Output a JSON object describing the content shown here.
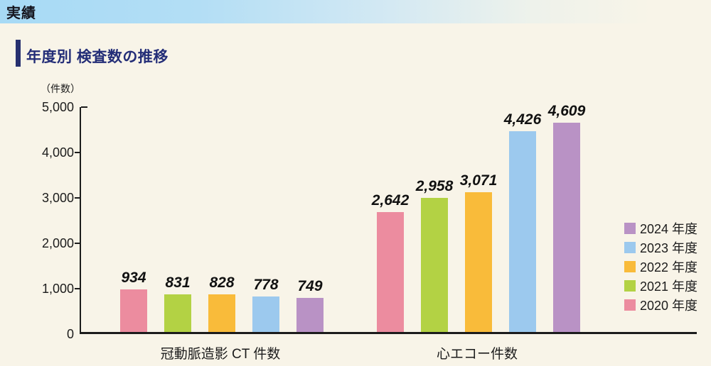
{
  "banner": {
    "label": "実績"
  },
  "section": {
    "title": "年度別 検査数の推移"
  },
  "chart_data": {
    "type": "bar",
    "title": "年度別 検査数の推移",
    "unit_label": "（件数）",
    "ylim": [
      0,
      5000
    ],
    "ytick_interval": 1000,
    "ytick_labels": [
      "0",
      "1,000",
      "2,000",
      "3,000",
      "4,000",
      "5,000"
    ],
    "grid": false,
    "legend_position": "right",
    "legend_order": "newest-first",
    "categories": [
      "冠動脈造影 CT 件数",
      "心エコー件数"
    ],
    "series": [
      {
        "name": "2020 年度",
        "color": "#ec8c9f",
        "values": [
          934,
          2642
        ],
        "value_labels": [
          "934",
          "2,642"
        ]
      },
      {
        "name": "2021 年度",
        "color": "#b3d244",
        "values": [
          831,
          2958
        ],
        "value_labels": [
          "831",
          "2,958"
        ]
      },
      {
        "name": "2022 年度",
        "color": "#f9bb3a",
        "values": [
          828,
          3071
        ],
        "value_labels": [
          "828",
          "3,071"
        ]
      },
      {
        "name": "2023 年度",
        "color": "#9cc9ee",
        "values": [
          778,
          4426
        ],
        "value_labels": [
          "778",
          "4,426"
        ]
      },
      {
        "name": "2024 年度",
        "color": "#b992c5",
        "values": [
          749,
          4609
        ],
        "value_labels": [
          "749",
          "4,609"
        ]
      }
    ]
  }
}
